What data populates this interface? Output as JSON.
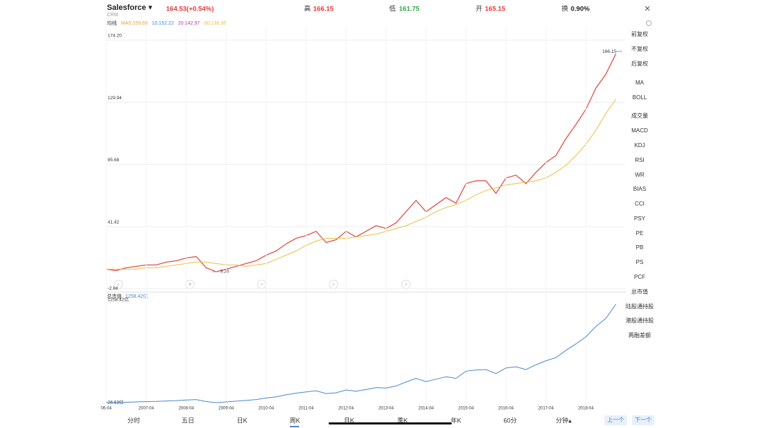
{
  "header": {
    "name": "Salesforce ▾",
    "symbol": "CRM",
    "price": "164.53(+0.54%)",
    "high_label": "高",
    "high": "166.15",
    "low_label": "低",
    "low": "161.75",
    "open_label": "开",
    "open": "165.15",
    "turnover_label": "换",
    "turnover": "0.90%"
  },
  "ma_legend": {
    "title": "均线",
    "items": [
      {
        "text": "MA5:159.69",
        "color": "#f0a030"
      },
      {
        "text": "10:152.22",
        "color": "#3a8fd8"
      },
      {
        "text": "20:142.97",
        "color": "#b040b0"
      },
      {
        "text": "60:136.36",
        "color": "#e8c040"
      }
    ]
  },
  "cap_legend": {
    "title": "总市值",
    "value": "1258.42亿"
  },
  "side_menu": [
    {
      "text": "前复权",
      "active": true
    },
    {
      "text": "不复权"
    },
    {
      "text": "后复权"
    },
    {
      "text": "MA",
      "active": true
    },
    {
      "text": "BOLL"
    },
    {
      "text": "成交量"
    },
    {
      "text": "MACD"
    },
    {
      "text": "KDJ"
    },
    {
      "text": "RSI"
    },
    {
      "text": "WR"
    },
    {
      "text": "BIAS"
    },
    {
      "text": "CCI"
    },
    {
      "text": "PSY"
    },
    {
      "text": "PE"
    },
    {
      "text": "PB"
    },
    {
      "text": "PS"
    },
    {
      "text": "PCF"
    },
    {
      "text": "总市值",
      "active": true
    },
    {
      "text": "陆股通持股"
    },
    {
      "text": "港股通持股"
    },
    {
      "text": "两融差额"
    }
  ],
  "tabs": [
    {
      "text": "分时"
    },
    {
      "text": "五日"
    },
    {
      "text": "日K"
    },
    {
      "text": "周K",
      "active": true
    },
    {
      "text": "月K"
    },
    {
      "text": "季K"
    },
    {
      "text": "年K"
    },
    {
      "text": "60分"
    },
    {
      "text": "分钟▴"
    }
  ],
  "buttons": [
    "上一个",
    "下一个"
  ],
  "chart_data": [
    {
      "type": "line",
      "x": [
        "2006-04",
        "2006-07",
        "2006-10",
        "2007-01",
        "2007-04",
        "2007-07",
        "2007-10",
        "2008-01",
        "2008-04",
        "2008-07",
        "2008-10",
        "2009-01",
        "2009-04",
        "2009-07",
        "2009-10",
        "2010-01",
        "2010-04",
        "2010-07",
        "2010-10",
        "2011-01",
        "2011-04",
        "2011-07",
        "2011-10",
        "2012-01",
        "2012-04",
        "2012-07",
        "2012-10",
        "2013-01",
        "2013-04",
        "2013-07",
        "2013-10",
        "2014-01",
        "2014-04",
        "2014-07",
        "2014-10",
        "2015-01",
        "2015-04",
        "2015-07",
        "2015-10",
        "2016-01",
        "2016-04",
        "2016-07",
        "2016-10",
        "2017-01",
        "2017-04",
        "2017-07",
        "2017-10",
        "2018-01",
        "2018-04",
        "2018-07",
        "2018-10",
        "2019-01"
      ],
      "series": [
        {
          "color": "#e0504a",
          "values": [
            11,
            10,
            12,
            13,
            14,
            14,
            16,
            17,
            19,
            20,
            12,
            9.2,
            11,
            13,
            15,
            17,
            21,
            24,
            29,
            33,
            35,
            38,
            30,
            32,
            38,
            34,
            38,
            42,
            40,
            44,
            52,
            60,
            52,
            57,
            62,
            58,
            72,
            74,
            74,
            65,
            76,
            78,
            72,
            80,
            87,
            92,
            104,
            114,
            125,
            140,
            150,
            164.53
          ]
        },
        {
          "color": "#e8c040",
          "values": [
            11,
            11,
            11,
            11,
            12,
            12,
            13,
            14,
            15,
            16,
            16,
            15,
            14,
            14,
            13,
            14,
            15,
            18,
            21,
            24,
            28,
            31,
            33,
            33,
            33,
            34,
            35,
            36,
            38,
            40,
            42,
            45,
            48,
            52,
            55,
            57,
            60,
            64,
            67,
            69,
            71,
            72,
            73,
            74,
            76,
            80,
            85,
            92,
            100,
            110,
            122,
            132
          ]
        }
      ],
      "ylim": [
        -2.84,
        174.2
      ],
      "yticks": [
        -2.84,
        41.42,
        85.68,
        129.94,
        {
          "value": 174.2,
          "label": "174.20"
        }
      ],
      "annotations": {
        "max": 166.15,
        "min": {
          "value": 9.2,
          "label": "9.20"
        }
      },
      "grid": true
    },
    {
      "type": "line",
      "x": [
        "2006-04",
        "2006-07",
        "2006-10",
        "2007-01",
        "2007-04",
        "2007-07",
        "2007-10",
        "2008-01",
        "2008-04",
        "2008-07",
        "2008-10",
        "2009-01",
        "2009-04",
        "2009-07",
        "2009-10",
        "2010-01",
        "2010-04",
        "2010-07",
        "2010-10",
        "2011-01",
        "2011-04",
        "2011-07",
        "2011-10",
        "2012-01",
        "2012-04",
        "2012-07",
        "2012-10",
        "2013-01",
        "2013-04",
        "2013-07",
        "2013-10",
        "2014-01",
        "2014-04",
        "2014-07",
        "2014-10",
        "2015-01",
        "2015-04",
        "2015-07",
        "2015-10",
        "2016-01",
        "2016-04",
        "2016-07",
        "2016-10",
        "2017-01",
        "2017-04",
        "2017-07",
        "2017-10",
        "2018-01",
        "2018-04",
        "2018-07",
        "2018-10",
        "2019-01"
      ],
      "series": [
        {
          "color": "#4a86d0",
          "values": [
            28,
            27,
            32,
            35,
            40,
            42,
            48,
            52,
            60,
            65,
            40,
            27,
            35,
            45,
            55,
            65,
            85,
            100,
            125,
            145,
            160,
            175,
            140,
            150,
            185,
            170,
            190,
            215,
            210,
            235,
            285,
            330,
            290,
            320,
            350,
            330,
            420,
            435,
            440,
            390,
            460,
            475,
            440,
            500,
            550,
            590,
            680,
            760,
            850,
            980,
            1080,
            1258.42
          ]
        }
      ],
      "ylim": [
        26.63,
        1258.42
      ],
      "yticks": [
        {
          "value": 26.63,
          "label": "26.63亿"
        },
        {
          "value": 1258.42,
          "label": "1258.42亿"
        }
      ],
      "xticks": [
        "06-04",
        "2007-04",
        "2008-04",
        "2009-04",
        "2010-04",
        "2011-04",
        "2012-04",
        "2013-04",
        "2014-04",
        "2015-04",
        "2016-04",
        "2017-04",
        "2018-04"
      ]
    }
  ]
}
